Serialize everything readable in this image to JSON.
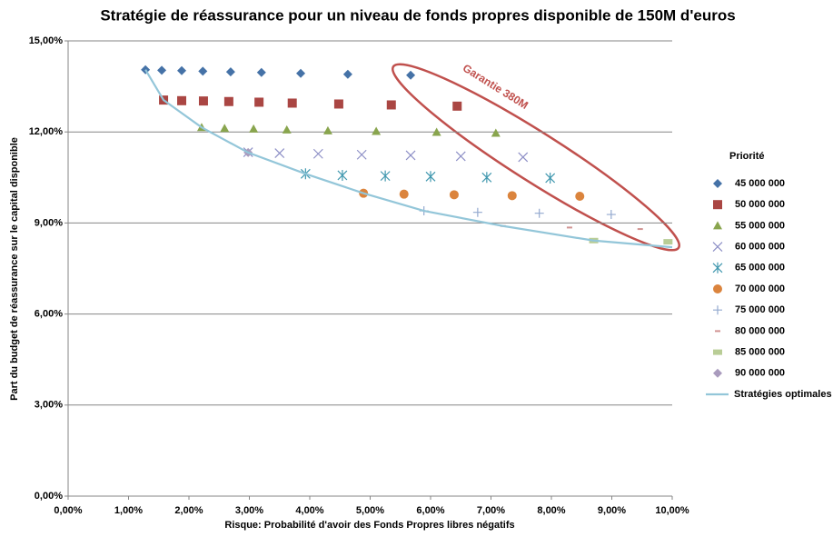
{
  "chart_data": {
    "type": "scatter",
    "title": "Stratégie de réassurance pour un niveau de fonds propres disponible de 150M d'euros",
    "x_label": "Risque: Probabilité d'avoir des Fonds Propres libres négatifs",
    "y_label": "Part du budget de réassurance sur le capital disponible",
    "legend_title": "Priorité",
    "legend": "right",
    "grid": true,
    "annotation": "Garantie 380M",
    "xlim": [
      0,
      10
    ],
    "ylim": [
      0,
      15
    ],
    "xticks": [
      {
        "value": 0,
        "label": "0,00%"
      },
      {
        "value": 1,
        "label": "1,00%"
      },
      {
        "value": 2,
        "label": "2,00%"
      },
      {
        "value": 3,
        "label": "3,00%"
      },
      {
        "value": 4,
        "label": "4,00%"
      },
      {
        "value": 5,
        "label": "5,00%"
      },
      {
        "value": 6,
        "label": "6,00%"
      },
      {
        "value": 7,
        "label": "7,00%"
      },
      {
        "value": 8,
        "label": "8,00%"
      },
      {
        "value": 9,
        "label": "9,00%"
      },
      {
        "value": 10,
        "label": "10,00%"
      }
    ],
    "yticks": [
      {
        "value": 0,
        "label": "0,00%"
      },
      {
        "value": 3,
        "label": "3,00%"
      },
      {
        "value": 6,
        "label": "6,00%"
      },
      {
        "value": 9,
        "label": "9,00%"
      },
      {
        "value": 12,
        "label": "12,00%"
      },
      {
        "value": 15,
        "label": "15,00%"
      }
    ],
    "series": [
      {
        "name": "45 000 000",
        "color": "#4572a7",
        "marker": "diamond",
        "x": [
          1.28,
          1.55,
          1.88,
          2.23,
          2.69,
          3.2,
          3.85,
          4.63,
          5.67
        ],
        "values": [
          14.05,
          14.03,
          14.02,
          14.0,
          13.98,
          13.96,
          13.93,
          13.9,
          13.87
        ]
      },
      {
        "name": "50 000 000",
        "color": "#aa4643",
        "marker": "square",
        "x": [
          1.58,
          1.88,
          2.24,
          2.66,
          3.16,
          3.71,
          4.48,
          5.35,
          6.44
        ],
        "values": [
          13.05,
          13.03,
          13.02,
          13.0,
          12.98,
          12.95,
          12.92,
          12.89,
          12.85
        ]
      },
      {
        "name": "55 000 000",
        "color": "#89a54e",
        "marker": "triangle",
        "x": [
          2.21,
          2.59,
          3.07,
          3.62,
          4.3,
          5.1,
          6.1,
          7.08
        ],
        "values": [
          12.15,
          12.12,
          12.1,
          12.07,
          12.04,
          12.02,
          11.99,
          11.96
        ]
      },
      {
        "name": "60 000 000",
        "color": "#8d8fc6",
        "marker": "x",
        "x": [
          2.98,
          3.5,
          4.14,
          4.86,
          5.67,
          6.5,
          7.53
        ],
        "values": [
          11.33,
          11.3,
          11.28,
          11.25,
          11.23,
          11.2,
          11.17
        ]
      },
      {
        "name": "65 000 000",
        "color": "#4198af",
        "marker": "asterisk",
        "x": [
          3.93,
          4.54,
          5.25,
          6.0,
          6.93,
          7.98
        ],
        "values": [
          10.62,
          10.57,
          10.55,
          10.53,
          10.5,
          10.48
        ]
      },
      {
        "name": "70 000 000",
        "color": "#db843d",
        "marker": "circle",
        "x": [
          4.89,
          5.56,
          6.39,
          7.35,
          8.47
        ],
        "values": [
          9.98,
          9.95,
          9.93,
          9.9,
          9.88
        ]
      },
      {
        "name": "75 000 000",
        "color": "#93a9cf",
        "marker": "plus",
        "x": [
          5.89,
          6.78,
          7.8,
          8.99
        ],
        "values": [
          9.4,
          9.35,
          9.32,
          9.28
        ]
      },
      {
        "name": "80 000 000",
        "color": "#d19392",
        "marker": "dash",
        "x": [
          7.2,
          8.3,
          9.47
        ],
        "values": [
          8.9,
          8.85,
          8.8
        ]
      },
      {
        "name": "85 000 000",
        "color": "#b9cd96",
        "marker": "bar",
        "x": [
          8.7,
          9.93
        ],
        "values": [
          8.42,
          8.38
        ]
      },
      {
        "name": "90 000 000",
        "color": "#a99bbd",
        "marker": "diamond",
        "x": [
          2.98
        ],
        "values": [
          11.32
        ]
      },
      {
        "name": "Stratégies optimales",
        "color": "#93c6d9",
        "marker": "line",
        "x": [
          1.28,
          1.58,
          2.21,
          2.98,
          3.93,
          4.89,
          5.89,
          7.2,
          8.7,
          10.0
        ],
        "values": [
          14.05,
          13.05,
          12.15,
          11.32,
          10.62,
          9.98,
          9.4,
          8.9,
          8.42,
          8.2
        ]
      }
    ]
  }
}
